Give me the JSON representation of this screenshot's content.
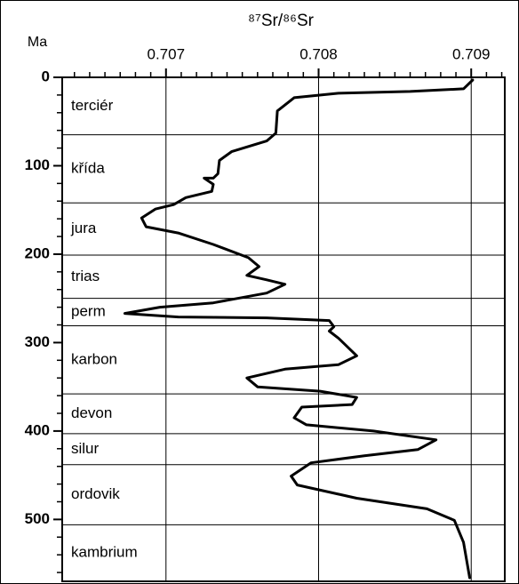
{
  "chart_data": {
    "type": "line",
    "title": "⁸⁷Sr/⁸⁶Sr",
    "y_label": "Ma",
    "xlim": [
      0.70632,
      0.70922
    ],
    "ylim": [
      0,
      570
    ],
    "y_inverted": true,
    "xticks": [
      0.707,
      0.708,
      0.709
    ],
    "xminorticks": [
      0.7064,
      0.7065,
      0.7066,
      0.7067,
      0.7068,
      0.7069,
      0.7071,
      0.7072,
      0.7073,
      0.7074,
      0.7075,
      0.7076,
      0.7077,
      0.7078,
      0.7079,
      0.7081,
      0.7082,
      0.7083,
      0.7084,
      0.7085,
      0.7086,
      0.7087,
      0.7088,
      0.7089,
      0.7091,
      0.7092
    ],
    "yticks": [
      0,
      100,
      200,
      300,
      400,
      500
    ],
    "yminorticks": [
      20,
      40,
      60,
      80,
      120,
      140,
      160,
      180,
      220,
      240,
      260,
      280,
      320,
      340,
      360,
      380,
      420,
      440,
      460,
      480,
      520,
      540,
      560
    ],
    "grid": true,
    "color": "#000000",
    "periods": [
      "terciér",
      "křída",
      "jura",
      "trias",
      "perm",
      "karbon",
      "devon",
      "silur",
      "ordovik",
      "kambrium"
    ],
    "boundaries": [
      65,
      142,
      201,
      250,
      281,
      358,
      403,
      438,
      506
    ],
    "x": [
      0.70901,
      0.70895,
      0.7086,
      0.70813,
      0.70784,
      0.70773,
      0.70772,
      0.70766,
      0.70743,
      0.70735,
      0.70734,
      0.70731,
      0.70725,
      0.70731,
      0.7073,
      0.70713,
      0.70705,
      0.70693,
      0.70684,
      0.70687,
      0.70708,
      0.70731,
      0.70754,
      0.70761,
      0.70753,
      0.70766,
      0.70778,
      0.70766,
      0.70731,
      0.70696,
      0.70673,
      0.70708,
      0.70766,
      0.70807,
      0.7081,
      0.70807,
      0.70813,
      0.70825,
      0.70813,
      0.70778,
      0.70753,
      0.7076,
      0.70801,
      0.70825,
      0.70822,
      0.70789,
      0.70784,
      0.70792,
      0.70836,
      0.70877,
      0.70865,
      0.7083,
      0.70795,
      0.70782,
      0.70786,
      0.70825,
      0.70871,
      0.70889,
      0.70895,
      0.70899
    ],
    "values": [
      3,
      13,
      16,
      18,
      23,
      38,
      63,
      72,
      84,
      94,
      109,
      114,
      114,
      121,
      129,
      136,
      144,
      149,
      159,
      169,
      176,
      189,
      204,
      214,
      224,
      229,
      234,
      244,
      255,
      260,
      267,
      271,
      272,
      275,
      282,
      287,
      295,
      315,
      325,
      330,
      340,
      350,
      355,
      362,
      370,
      373,
      385,
      393,
      400,
      410,
      421,
      428,
      436,
      451,
      461,
      476,
      488,
      501,
      526,
      566
    ]
  }
}
